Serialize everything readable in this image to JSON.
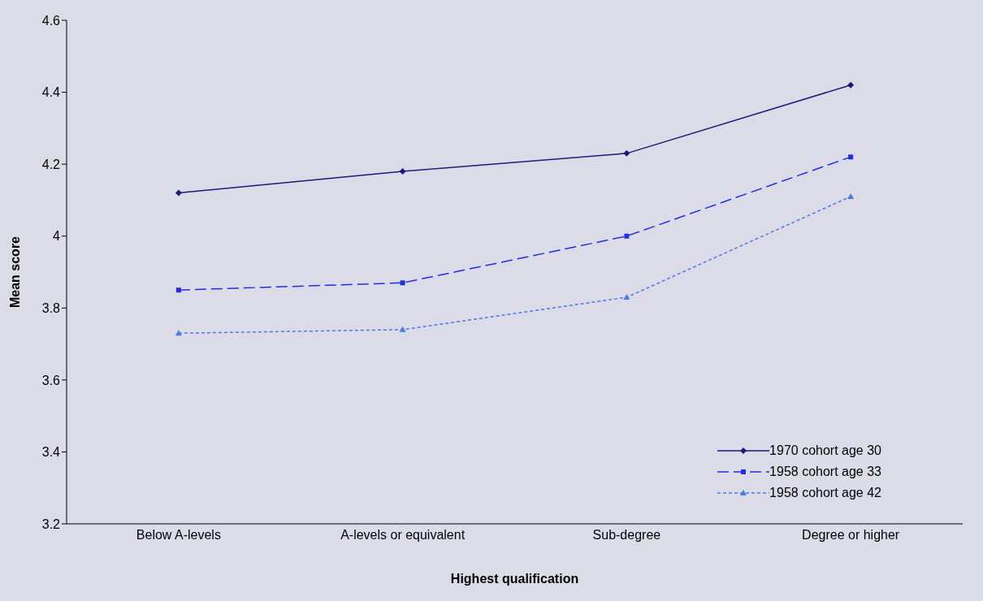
{
  "chart_data": {
    "type": "line",
    "xlabel": "Highest qualification",
    "ylabel": "Mean score",
    "categories": [
      "Below A-levels",
      "A-levels or equivalent",
      "Sub-degree",
      "Degree or higher"
    ],
    "series": [
      {
        "name": "1970 cohort age 30",
        "color": "#1c1c78",
        "values": [
          4.12,
          4.18,
          4.23,
          4.42
        ],
        "marker": "diamond",
        "line_style": "solid"
      },
      {
        "name": "1958 cohort age 33",
        "color": "#1f2fe0",
        "values": [
          3.85,
          3.87,
          4.0,
          4.22
        ],
        "marker": "square",
        "line_style": "dashed"
      },
      {
        "name": "1958 cohort age 42",
        "color": "#4a7ae8",
        "values": [
          3.73,
          3.74,
          3.83,
          4.11
        ],
        "marker": "triangle",
        "line_style": "dotted"
      }
    ],
    "ylim": [
      3.2,
      4.6
    ],
    "yticks": [
      3.2,
      3.4,
      3.6,
      3.8,
      4,
      4.2,
      4.4,
      4.6
    ],
    "grid": false,
    "legend": "bottom right"
  }
}
